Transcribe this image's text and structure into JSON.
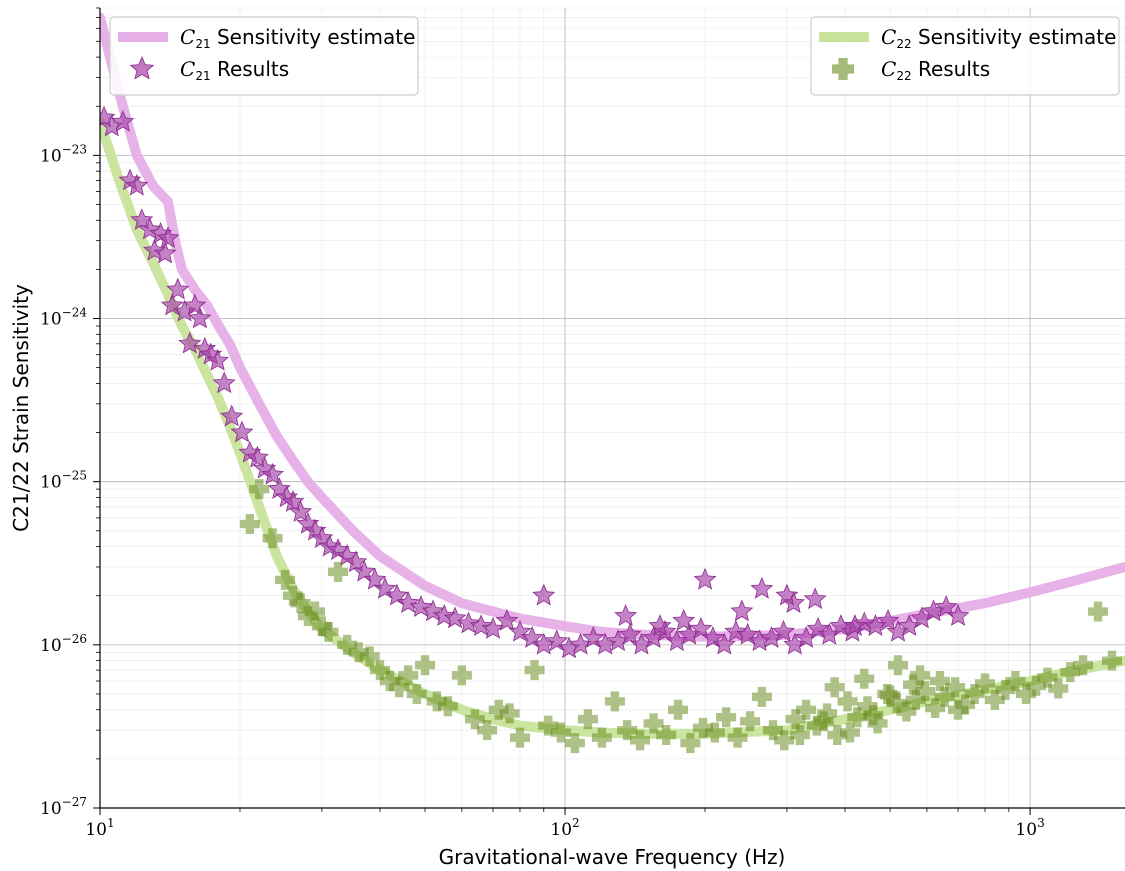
{
  "chart_data": {
    "type": "scatter",
    "xscale": "log",
    "yscale": "log",
    "xlim": [
      10,
      1600
    ],
    "ylim": [
      1e-27,
      8e-23
    ],
    "xlabel": "Gravitational-wave Frequency (Hz)",
    "ylabel": "C21/22 Strain Sensitivity",
    "grid": true,
    "x_ticks": [
      {
        "value": 10,
        "base": "10",
        "exp": "1"
      },
      {
        "value": 100,
        "base": "10",
        "exp": "2"
      },
      {
        "value": 1000,
        "base": "10",
        "exp": "3"
      }
    ],
    "y_ticks": [
      {
        "value": 1e-27,
        "base": "10",
        "exp": "−27"
      },
      {
        "value": 1e-26,
        "base": "10",
        "exp": "−26"
      },
      {
        "value": 1e-25,
        "base": "10",
        "exp": "−25"
      },
      {
        "value": 1e-24,
        "base": "10",
        "exp": "−24"
      },
      {
        "value": 1e-23,
        "base": "10",
        "exp": "−23"
      }
    ],
    "colors": {
      "c21_curve": "#e6aee6",
      "c22_curve": "#c8e39a",
      "c21_marker": "#a441a8",
      "c21_marker_edge": "#8a2a8e",
      "c22_marker": "#6b8e23",
      "grid": "#b0b0b0"
    },
    "legend": [
      {
        "position": "top-left",
        "entries": [
          {
            "label": "C21 Sensitivity estimate",
            "sym": "C",
            "sub": "21",
            "rest": " Sensitivity estimate",
            "kind": "line",
            "color": "#e6aee6"
          },
          {
            "label": "C21 Results",
            "sym": "C",
            "sub": "21",
            "rest": " Results",
            "kind": "star",
            "color": "#a441a8"
          }
        ]
      },
      {
        "position": "top-right",
        "entries": [
          {
            "label": "C22 Sensitivity estimate",
            "sym": "C",
            "sub": "22",
            "rest": " Sensitivity estimate",
            "kind": "line",
            "color": "#c8e39a"
          },
          {
            "label": "C22 Results",
            "sym": "C",
            "sub": "22",
            "rest": " Results",
            "kind": "plus",
            "color": "#6b8e23"
          }
        ]
      }
    ],
    "series": [
      {
        "name": "C21 Sensitivity estimate",
        "kind": "curve",
        "x": [
          10,
          11,
          12,
          13,
          14,
          14.5,
          15,
          16,
          17,
          18,
          19,
          20,
          22,
          24,
          26,
          28,
          30,
          35,
          40,
          50,
          60,
          70,
          80,
          100,
          120,
          150,
          200,
          300,
          400,
          500,
          600,
          800,
          1000,
          1200,
          1600
        ],
        "y": [
          7e-23,
          2.4e-23,
          1e-23,
          6.5e-24,
          5.2e-24,
          3e-24,
          2e-24,
          1.5e-24,
          1.2e-24,
          9e-25,
          7e-25,
          5e-25,
          3e-25,
          1.9e-25,
          1.35e-25,
          1e-25,
          8e-26,
          5e-26,
          3.5e-26,
          2.3e-26,
          1.8e-26,
          1.6e-26,
          1.45e-26,
          1.3e-26,
          1.2e-26,
          1.15e-26,
          1.12e-26,
          1.15e-26,
          1.25e-26,
          1.4e-26,
          1.55e-26,
          1.8e-26,
          2.1e-26,
          2.4e-26,
          3e-26
        ]
      },
      {
        "name": "C22 Sensitivity estimate",
        "kind": "curve",
        "x": [
          10,
          11,
          12,
          13,
          14,
          15,
          16,
          17,
          18,
          19,
          20,
          22,
          24,
          26,
          28,
          30,
          35,
          40,
          50,
          60,
          70,
          80,
          100,
          120,
          150,
          200,
          300,
          400,
          500,
          600,
          800,
          1000,
          1200,
          1600
        ],
        "y": [
          1.6e-23,
          7e-24,
          3.5e-24,
          2.2e-24,
          1.4e-24,
          9e-25,
          6.5e-25,
          4.5e-25,
          3.2e-25,
          2.2e-25,
          1.5e-25,
          7e-26,
          3.5e-26,
          2.2e-26,
          1.6e-26,
          1.25e-26,
          9e-27,
          7e-27,
          5e-27,
          4e-27,
          3.5e-27,
          3.2e-27,
          3e-27,
          2.9e-27,
          2.85e-27,
          2.85e-27,
          3e-27,
          3.5e-27,
          4e-27,
          4.5e-27,
          5.3e-27,
          6e-27,
          6.8e-27,
          8e-27
        ]
      },
      {
        "name": "C21 Results",
        "kind": "points",
        "marker": "star",
        "x": [
          10.2,
          10.6,
          11.2,
          11.6,
          12.0,
          12.3,
          12.8,
          13.1,
          13.5,
          13.8,
          14.0,
          14.3,
          14.7,
          15.2,
          15.6,
          16.0,
          16.4,
          16.8,
          17.3,
          17.9,
          18.5,
          19.2,
          20.2,
          21.0,
          21.8,
          22.6,
          23.5,
          24.3,
          25.2,
          26.0,
          27.0,
          28.0,
          29.0,
          30.0,
          31.2,
          32.5,
          34.0,
          35.5,
          37.0,
          39.0,
          41.0,
          43.5,
          46.0,
          49.0,
          52.0,
          55.0,
          58.0,
          62.0,
          66.0,
          70.0,
          75.0,
          80.0,
          85.0,
          90.0,
          96.0,
          102.0,
          108.0,
          115.0,
          122.0,
          130.0,
          138.0,
          146.0,
          155.0,
          164.0,
          174.0,
          185.0,
          196.0,
          208.0,
          220.0,
          233.0,
          247.0,
          262.0,
          278.0,
          295.0,
          312.0,
          330.0,
          350.0,
          370.0,
          392.0,
          415.0,
          440.0,
          465.0,
          495.0,
          520.0,
          550.0,
          585.0,
          620.0,
          660.0,
          700.0,
          200.0,
          265.0,
          310.0,
          345.0,
          135.0,
          180.0,
          240.0,
          300.0,
          420.0,
          90.0,
          160.0
        ],
        "y": [
          1.7e-23,
          1.5e-23,
          1.6e-23,
          7e-24,
          6.5e-24,
          4e-24,
          3.5e-24,
          2.6e-24,
          3.3e-24,
          2.5e-24,
          3.1e-24,
          1.2e-24,
          1.5e-24,
          1.1e-24,
          7e-25,
          1.2e-24,
          1e-24,
          6.5e-25,
          6e-25,
          5.5e-25,
          4e-25,
          2.5e-25,
          2e-25,
          1.5e-25,
          1.4e-25,
          1.2e-25,
          1.1e-25,
          9e-26,
          8e-26,
          7.5e-26,
          6.5e-26,
          5.5e-26,
          5e-26,
          4.5e-26,
          4e-26,
          3.8e-26,
          3.5e-26,
          3.2e-26,
          2.8e-26,
          2.5e-26,
          2.2e-26,
          2e-26,
          1.8e-26,
          1.7e-26,
          1.6e-26,
          1.5e-26,
          1.45e-26,
          1.35e-26,
          1.3e-26,
          1.25e-26,
          1.4e-26,
          1.2e-26,
          1.1e-26,
          1e-26,
          1.05e-26,
          9.5e-27,
          1e-26,
          1.1e-26,
          1e-26,
          1.05e-26,
          1.15e-26,
          1e-26,
          1.1e-26,
          1.2e-26,
          1.05e-26,
          1.15e-26,
          1.25e-26,
          1.1e-26,
          1e-26,
          1.2e-26,
          1.15e-26,
          1.05e-26,
          1.1e-26,
          1.2e-26,
          1e-26,
          1.1e-26,
          1.25e-26,
          1.15e-26,
          1.3e-26,
          1.2e-26,
          1.35e-26,
          1.3e-26,
          1.4e-26,
          1.2e-26,
          1.3e-26,
          1.45e-26,
          1.6e-26,
          1.7e-26,
          1.5e-26,
          2.5e-26,
          2.2e-26,
          1.8e-26,
          1.9e-26,
          1.5e-26,
          1.4e-26,
          1.6e-26,
          2e-26,
          1.3e-26,
          2e-26,
          1.3e-26
        ]
      },
      {
        "name": "C22 Results",
        "kind": "points",
        "marker": "plus",
        "x": [
          21.0,
          22.0,
          23.5,
          25.0,
          26.0,
          27.0,
          28.0,
          29.0,
          30.0,
          31.0,
          32.5,
          34.0,
          36.0,
          38.0,
          40.0,
          42.0,
          44.0,
          46.0,
          48.0,
          50.0,
          53.0,
          56.0,
          60.0,
          64.0,
          68.0,
          72.0,
          76.0,
          80.0,
          86.0,
          92.0,
          98.0,
          105.0,
          112.0,
          120.0,
          128.0,
          136.0,
          145.0,
          155.0,
          165.0,
          175.0,
          186.0,
          198.0,
          210.0,
          222.0,
          235.0,
          250.0,
          265.0,
          280.0,
          296.0,
          313.0,
          330.0,
          348.0,
          366.0,
          385.0,
          405.0,
          425.0,
          447.0,
          470.0,
          493.0,
          517.0,
          542.0,
          568.0,
          595.0,
          625.0,
          655.0,
          690.0,
          725.0,
          760.0,
          800.0,
          840.0,
          885.0,
          930.0,
          980.0,
          1030.0,
          1090.0,
          1150.0,
          1220.0,
          1300.0,
          1400.0,
          1500.0,
          320.0,
          360.0,
          410.0,
          460.0,
          520.0,
          580.0,
          640.0,
          700.0,
          380.0,
          440.0,
          500.0,
          560.0
        ],
        "y": [
          5.5e-26,
          9e-26,
          4.5e-26,
          2.5e-26,
          2e-26,
          1.8e-26,
          1.5e-26,
          1.6e-26,
          1.3e-26,
          1.2e-26,
          2.8e-26,
          1e-26,
          9e-27,
          8.5e-27,
          7e-27,
          6e-27,
          5.5e-27,
          6.5e-27,
          5e-27,
          7.5e-27,
          4.5e-27,
          4.2e-27,
          6.5e-27,
          3.5e-27,
          3e-27,
          4e-27,
          3.8e-27,
          2.7e-27,
          7e-27,
          3.2e-27,
          2.9e-27,
          2.5e-27,
          3.5e-27,
          2.7e-27,
          4.5e-27,
          3e-27,
          2.6e-27,
          3.3e-27,
          2.8e-27,
          4e-27,
          2.5e-27,
          3.1e-27,
          2.9e-27,
          3.6e-27,
          2.7e-27,
          3.4e-27,
          4.8e-27,
          3e-27,
          2.6e-27,
          3.5e-27,
          4e-27,
          3.2e-27,
          3.8e-27,
          2.8e-27,
          4.5e-27,
          3.6e-27,
          4.2e-27,
          3.3e-27,
          5e-27,
          4.4e-27,
          3.9e-27,
          4.6e-27,
          5.2e-27,
          4.1e-27,
          4.8e-27,
          5.5e-27,
          4.3e-27,
          5e-27,
          5.8e-27,
          4.6e-27,
          5.3e-27,
          6e-27,
          5e-27,
          5.6e-27,
          6.3e-27,
          5.4e-27,
          6.8e-27,
          7.5e-27,
          1.6e-26,
          8e-27,
          2.8e-27,
          3.4e-27,
          2.9e-27,
          3.7e-27,
          7.5e-27,
          6.5e-27,
          6e-27,
          4e-27,
          5.5e-27,
          6.2e-27,
          4.9e-27,
          5.7e-27
        ]
      }
    ]
  }
}
